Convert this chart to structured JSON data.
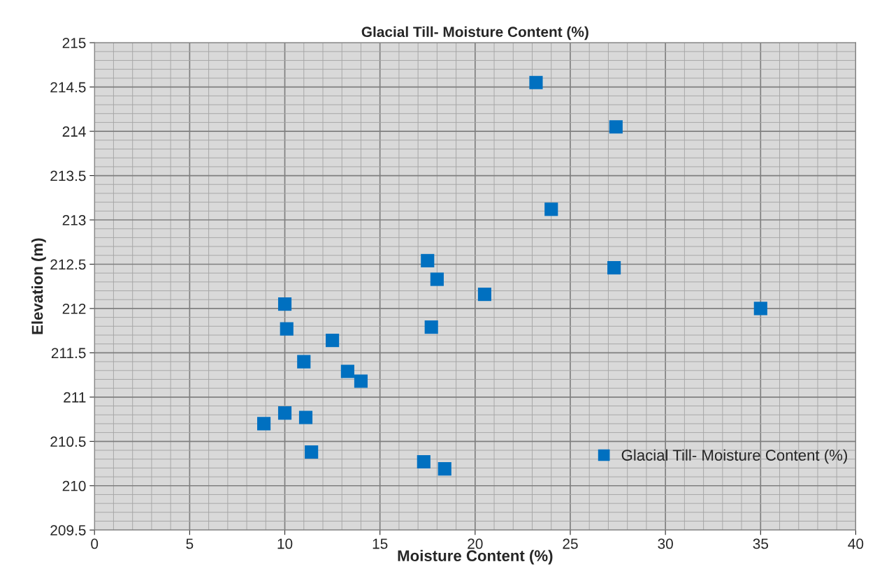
{
  "chart_data": {
    "type": "scatter",
    "title": "Glacial Till- Moisture Content (%)",
    "xlabel": "Moisture Content (%)",
    "ylabel": "Elevation (m)",
    "series": [
      {
        "name": "Glacial Till- Moisture Content (%)",
        "color": "#0070c0",
        "x": [
          23.2,
          27.4,
          24.0,
          17.5,
          27.3,
          18.0,
          20.5,
          35.0,
          10.0,
          10.1,
          17.7,
          12.5,
          11.0,
          13.3,
          14.0,
          10.0,
          11.1,
          8.9,
          11.4,
          17.3,
          18.4
        ],
        "values": [
          214.55,
          214.05,
          213.12,
          212.54,
          212.46,
          212.33,
          212.16,
          212.0,
          212.05,
          211.77,
          211.79,
          211.64,
          211.4,
          211.29,
          211.18,
          210.82,
          210.77,
          210.7,
          210.38,
          210.27,
          210.19
        ]
      }
    ],
    "xlim": [
      0,
      40
    ],
    "xticks": [
      0,
      5,
      10,
      15,
      20,
      25,
      30,
      35,
      40
    ],
    "ylim": [
      209.5,
      215
    ],
    "yticks": [
      209.5,
      210,
      210.5,
      211,
      211.5,
      212,
      212.5,
      213,
      213.5,
      214,
      214.5,
      215
    ],
    "grid": true,
    "legend": "bottom right",
    "marker": "square"
  }
}
